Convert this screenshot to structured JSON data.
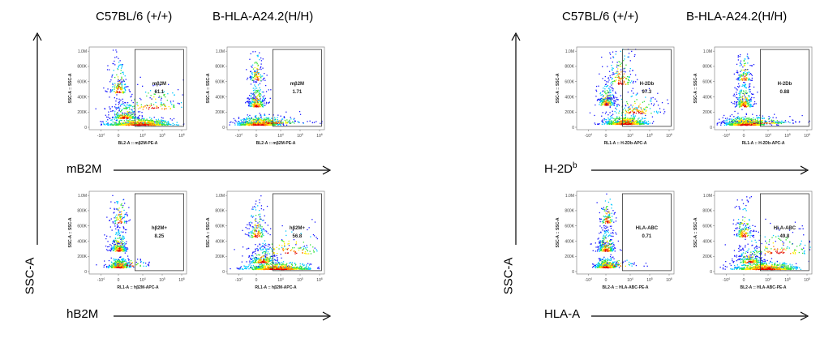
{
  "panels": [
    {
      "headers": [
        "C57BL/6 (+/+)",
        "B-HLA-A24.2(H/H)"
      ],
      "y_axis_label": "SSC-A",
      "rows": [
        {
          "row_label": "mB2M",
          "row_label_sup": "",
          "plots": [
            {
              "gate": "mβ2M",
              "value": "61.1",
              "xlabel": "BL2-A :: mβ2M-PE-A",
              "ylabel": "SSC-A :: SSC-A",
              "pattern": "broad"
            },
            {
              "gate": "mβ2M",
              "value": "1.71",
              "xlabel": "BL2-A :: mβ2M-PE-A",
              "ylabel": "SSC-A :: SSC-A",
              "pattern": "left"
            }
          ]
        },
        {
          "row_label": "hB2M",
          "row_label_sup": "",
          "plots": [
            {
              "gate": "hβ2M+",
              "value": "8.25",
              "xlabel": "RL1-A :: hβ2M-APC-A",
              "ylabel": "SSC-A :: SSC-A",
              "pattern": "tight"
            },
            {
              "gate": "hβ2M+",
              "value": "56.8",
              "xlabel": "RL1-A :: hβ2M-APC-A",
              "ylabel": "SSC-A :: SSC-A",
              "pattern": "broad"
            }
          ]
        }
      ]
    },
    {
      "headers": [
        "C57BL/6 (+/+)",
        "B-HLA-A24.2(H/H)"
      ],
      "y_axis_label": "SSC-A",
      "rows": [
        {
          "row_label": "H-2D",
          "row_label_sup": "b",
          "plots": [
            {
              "gate": "H-2Db",
              "value": "97.3",
              "xlabel": "RL1-A :: H-2Db-APC-A",
              "ylabel": "SSC-A :: SSC-A",
              "pattern": "right"
            },
            {
              "gate": "H-2Db",
              "value": "0.88",
              "xlabel": "RL1-A :: H-2Db-APC-A",
              "ylabel": "SSC-A :: SSC-A",
              "pattern": "left"
            }
          ]
        },
        {
          "row_label": "HLA-A",
          "row_label_sup": "",
          "plots": [
            {
              "gate": "HLA-ABC",
              "value": "0.71",
              "xlabel": "BL2-A :: HLA-ABC-PE-A",
              "ylabel": "SSC-A :: SSC-A",
              "pattern": "tight"
            },
            {
              "gate": "HLA-ABC",
              "value": "49.8",
              "xlabel": "BL2-A :: HLA-ABC-PE-A",
              "ylabel": "SSC-A :: SSC-A",
              "pattern": "broad"
            }
          ]
        }
      ]
    }
  ],
  "chart_data": [
    {
      "type": "scatter",
      "title": "C57BL/6 (+/+) — mB2M",
      "gate": "mβ2M",
      "gate_percent": 61.1,
      "xlabel": "BL2-A :: mβ2M-PE-A",
      "ylabel": "SSC-A :: SSC-A",
      "y_ticks": [
        "0",
        "200K",
        "400K",
        "600K",
        "800K",
        "1.0M"
      ],
      "x_ticks": [
        "-10^4",
        "0",
        "10^4",
        "10^5",
        "10^6"
      ]
    },
    {
      "type": "scatter",
      "title": "B-HLA-A24.2(H/H) — mB2M",
      "gate": "mβ2M",
      "gate_percent": 1.71,
      "xlabel": "BL2-A :: mβ2M-PE-A",
      "ylabel": "SSC-A :: SSC-A",
      "y_ticks": [
        "0",
        "200K",
        "400K",
        "600K",
        "800K",
        "1.0M"
      ],
      "x_ticks": [
        "-10^4",
        "0",
        "10^4",
        "10^5",
        "10^6"
      ]
    },
    {
      "type": "scatter",
      "title": "C57BL/6 (+/+) — hB2M",
      "gate": "hβ2M+",
      "gate_percent": 8.25,
      "xlabel": "RL1-A :: hβ2M-APC-A",
      "ylabel": "SSC-A :: SSC-A",
      "y_ticks": [
        "0",
        "200K",
        "400K",
        "600K",
        "800K",
        "1.0M"
      ],
      "x_ticks": [
        "-10^4",
        "0",
        "10^4",
        "10^5",
        "10^6"
      ]
    },
    {
      "type": "scatter",
      "title": "B-HLA-A24.2(H/H) — hB2M",
      "gate": "hβ2M+",
      "gate_percent": 56.8,
      "xlabel": "RL1-A :: hβ2M-APC-A",
      "ylabel": "SSC-A :: SSC-A",
      "y_ticks": [
        "0",
        "200K",
        "400K",
        "600K",
        "800K",
        "1.0M"
      ],
      "x_ticks": [
        "-10^4",
        "0",
        "10^4",
        "10^5",
        "10^6"
      ]
    },
    {
      "type": "scatter",
      "title": "C57BL/6 (+/+) — H-2Db",
      "gate": "H-2Db",
      "gate_percent": 97.3,
      "xlabel": "RL1-A :: H-2Db-APC-A",
      "ylabel": "SSC-A :: SSC-A",
      "y_ticks": [
        "0",
        "200K",
        "400K",
        "600K",
        "800K",
        "1.0M"
      ],
      "x_ticks": [
        "-10^4",
        "0",
        "10^4",
        "10^5",
        "10^6"
      ]
    },
    {
      "type": "scatter",
      "title": "B-HLA-A24.2(H/H) — H-2Db",
      "gate": "H-2Db",
      "gate_percent": 0.88,
      "xlabel": "RL1-A :: H-2Db-APC-A",
      "ylabel": "SSC-A :: SSC-A",
      "y_ticks": [
        "0",
        "200K",
        "400K",
        "600K",
        "800K",
        "1.0M"
      ],
      "x_ticks": [
        "-10^4",
        "0",
        "10^4",
        "10^5",
        "10^6"
      ]
    },
    {
      "type": "scatter",
      "title": "C57BL/6 (+/+) — HLA-A",
      "gate": "HLA-ABC",
      "gate_percent": 0.71,
      "xlabel": "BL2-A :: HLA-ABC-PE-A",
      "ylabel": "SSC-A :: SSC-A",
      "y_ticks": [
        "0",
        "200K",
        "400K",
        "600K",
        "800K",
        "1.0M"
      ],
      "x_ticks": [
        "-10^4",
        "0",
        "10^4",
        "10^5",
        "10^6"
      ]
    },
    {
      "type": "scatter",
      "title": "B-HLA-A24.2(H/H) — HLA-A",
      "gate": "HLA-ABC",
      "gate_percent": 49.8,
      "xlabel": "BL2-A :: HLA-ABC-PE-A",
      "ylabel": "SSC-A :: SSC-A",
      "y_ticks": [
        "0",
        "200K",
        "400K",
        "600K",
        "800K",
        "1.0M"
      ],
      "x_ticks": [
        "-10^4",
        "0",
        "10^4",
        "10^5",
        "10^6"
      ]
    }
  ],
  "axis_ticks": {
    "y": [
      "0",
      "200K",
      "400K",
      "600K",
      "800K",
      "1.0M"
    ],
    "x": [
      "-10",
      "0",
      "10",
      "10",
      "10"
    ],
    "x_exp": [
      "4",
      "",
      "4",
      "5",
      "6"
    ]
  },
  "colors": {
    "dots": [
      "#1a1aff",
      "#00c8ff",
      "#36e03c",
      "#ffee00",
      "#ff7a00",
      "#e00000"
    ],
    "axis": "#444444",
    "arrow": "#000000"
  }
}
